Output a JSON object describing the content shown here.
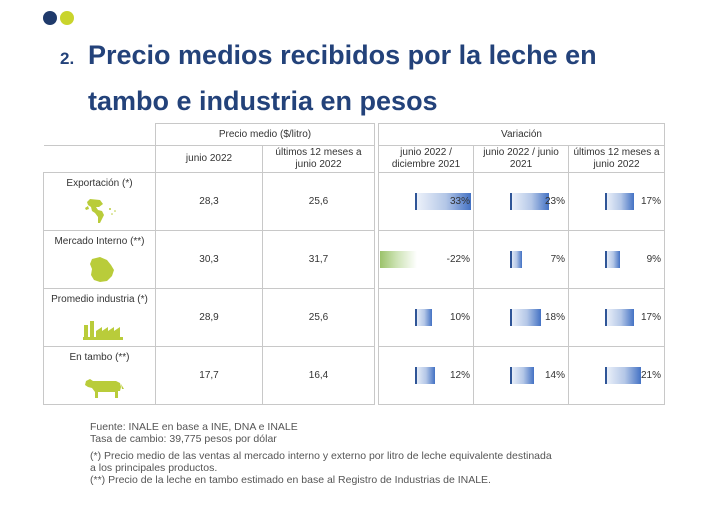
{
  "title": {
    "number": "2.",
    "line1": "Precio medios recibidos por la leche en",
    "line2": "tambo e industria en pesos"
  },
  "headers": {
    "group_precio": "Precio medio ($/litro)",
    "group_variacion": "Variación",
    "precio_jun": "junio 2022",
    "precio_12m_l1": "últimos 12 meses a",
    "precio_12m_l2": "junio 2022",
    "var_dic_l1": "junio 2022 /",
    "var_dic_l2": "diciembre 2021",
    "var_jun_l1": "junio 2022 / junio",
    "var_jun_l2": "2021",
    "var_12m_l1": "últimos 12 meses a",
    "var_12m_l2": "junio 2022"
  },
  "rows": [
    {
      "label": "Exportación (*)",
      "icon": "americas-map-icon",
      "precio_jun": "28,3",
      "precio_12m": "25,6",
      "var_dic": "33%",
      "var_jun": "23%",
      "var_12m": "17%",
      "var_dic_value": 33,
      "var_jun_value": 23,
      "var_12m_value": 17
    },
    {
      "label": "Mercado Interno (**)",
      "icon": "uruguay-map-icon",
      "precio_jun": "30,3",
      "precio_12m": "31,7",
      "var_dic": "-22%",
      "var_jun": "7%",
      "var_12m": "9%",
      "var_dic_value": -22,
      "var_jun_value": 7,
      "var_12m_value": 9
    },
    {
      "label": "Promedio industria (*)",
      "icon": "factory-icon",
      "precio_jun": "28,9",
      "precio_12m": "25,6",
      "var_dic": "10%",
      "var_jun": "18%",
      "var_12m": "17%",
      "var_dic_value": 10,
      "var_jun_value": 18,
      "var_12m_value": 17
    },
    {
      "label": "En tambo (**)",
      "icon": "cow-icon",
      "precio_jun": "17,7",
      "precio_12m": "16,4",
      "var_dic": "12%",
      "var_jun": "14%",
      "var_12m": "21%",
      "var_dic_value": 12,
      "var_jun_value": 14,
      "var_12m_value": 21
    }
  ],
  "notes": {
    "fuente": "Fuente: INALE en base a INE, DNA e INALE",
    "tasa": "Tasa de cambio: 39,775 pesos por dólar",
    "nota1_l1": "(*) Precio medio de las ventas al mercado interno y externo por litro de leche equivalente destinada",
    "nota1_l2": "a los principales productos.",
    "nota2": "(**) Precio de la leche en tambo estimado en base al Registro de Industrias de INALE."
  },
  "colors": {
    "title": "#23427a",
    "value_text": "#2a5a9c",
    "positive_bar": "#4472c4",
    "negative_bar": "#9bc26a",
    "dot_navy": "#1f3a6b",
    "dot_lime": "#c9d42c",
    "icon_green": "#b9cc3a"
  }
}
